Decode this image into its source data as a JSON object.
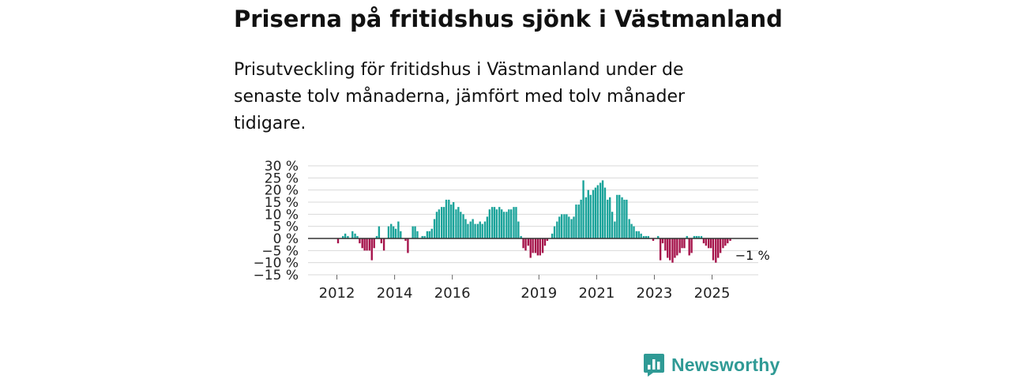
{
  "title": "Priserna på fritidshus sjönk i Västmanland",
  "subtitle": "Prisutveckling för fritidshus i Västmanland under de senaste tolv månaderna, jämfört med tolv månader tidigare.",
  "brand": {
    "name": "Newsworthy",
    "logo_icon": "bar-chart-speech-bubble-icon"
  },
  "colors": {
    "positive": "#1aa39a",
    "negative": "#a5124a",
    "grid": "#d9d9d9",
    "zero_line": "#333333",
    "brand": "#2f9a95"
  },
  "chart_data": {
    "type": "bar",
    "title": "Priserna på fritidshus sjönk i Västmanland",
    "xlabel": "",
    "ylabel": "",
    "ylim": [
      -15,
      30
    ],
    "xlim": [
      2011.0,
      2026.6
    ],
    "yticks": [
      30,
      25,
      20,
      15,
      10,
      5,
      0,
      -5,
      -10,
      -15
    ],
    "ytick_labels": [
      "30 %",
      "25 %",
      "20 %",
      "15 %",
      "10 %",
      "5 %",
      "0 %",
      "−5 %",
      "−10 %",
      "−15 %"
    ],
    "xticks": [
      2012,
      2014,
      2016,
      2019,
      2021,
      2023,
      2025
    ],
    "xtick_labels": [
      "2012",
      "2014",
      "2016",
      "2019",
      "2021",
      "2023",
      "2025"
    ],
    "annotation": {
      "text": "−1 %",
      "x": 2025.8,
      "y": -1
    },
    "grid": true,
    "series": [
      {
        "name": "Prisutveckling",
        "step_months": 1,
        "points": [
          {
            "t": 2011.96,
            "v": 0
          },
          {
            "t": 2012.04,
            "v": -2
          },
          {
            "t": 2012.13,
            "v": 0
          },
          {
            "t": 2012.21,
            "v": 1
          },
          {
            "t": 2012.29,
            "v": 2
          },
          {
            "t": 2012.38,
            "v": 1
          },
          {
            "t": 2012.46,
            "v": 0
          },
          {
            "t": 2012.54,
            "v": 3
          },
          {
            "t": 2012.63,
            "v": 2
          },
          {
            "t": 2012.71,
            "v": 1
          },
          {
            "t": 2012.79,
            "v": -2
          },
          {
            "t": 2012.88,
            "v": -4
          },
          {
            "t": 2012.96,
            "v": -5
          },
          {
            "t": 2013.04,
            "v": -5
          },
          {
            "t": 2013.13,
            "v": -5
          },
          {
            "t": 2013.21,
            "v": -9
          },
          {
            "t": 2013.29,
            "v": -4
          },
          {
            "t": 2013.38,
            "v": 1
          },
          {
            "t": 2013.46,
            "v": 5
          },
          {
            "t": 2013.54,
            "v": -2
          },
          {
            "t": 2013.63,
            "v": -5
          },
          {
            "t": 2013.71,
            "v": 0
          },
          {
            "t": 2013.79,
            "v": 5
          },
          {
            "t": 2013.88,
            "v": 6
          },
          {
            "t": 2013.96,
            "v": 5
          },
          {
            "t": 2014.04,
            "v": 4
          },
          {
            "t": 2014.13,
            "v": 7
          },
          {
            "t": 2014.21,
            "v": 3
          },
          {
            "t": 2014.29,
            "v": 0
          },
          {
            "t": 2014.38,
            "v": -1
          },
          {
            "t": 2014.46,
            "v": -6
          },
          {
            "t": 2014.54,
            "v": 0
          },
          {
            "t": 2014.63,
            "v": 5
          },
          {
            "t": 2014.71,
            "v": 5
          },
          {
            "t": 2014.79,
            "v": 3
          },
          {
            "t": 2014.88,
            "v": 0
          },
          {
            "t": 2014.96,
            "v": 1
          },
          {
            "t": 2015.04,
            "v": 1
          },
          {
            "t": 2015.13,
            "v": 3
          },
          {
            "t": 2015.21,
            "v": 3
          },
          {
            "t": 2015.29,
            "v": 4
          },
          {
            "t": 2015.38,
            "v": 8
          },
          {
            "t": 2015.46,
            "v": 11
          },
          {
            "t": 2015.54,
            "v": 12
          },
          {
            "t": 2015.63,
            "v": 13
          },
          {
            "t": 2015.71,
            "v": 13
          },
          {
            "t": 2015.79,
            "v": 16
          },
          {
            "t": 2015.88,
            "v": 16
          },
          {
            "t": 2015.96,
            "v": 14
          },
          {
            "t": 2016.04,
            "v": 15
          },
          {
            "t": 2016.13,
            "v": 12
          },
          {
            "t": 2016.21,
            "v": 13
          },
          {
            "t": 2016.29,
            "v": 11
          },
          {
            "t": 2016.38,
            "v": 10
          },
          {
            "t": 2016.46,
            "v": 8
          },
          {
            "t": 2016.54,
            "v": 6
          },
          {
            "t": 2016.63,
            "v": 7
          },
          {
            "t": 2016.71,
            "v": 8
          },
          {
            "t": 2016.79,
            "v": 6
          },
          {
            "t": 2016.88,
            "v": 6
          },
          {
            "t": 2016.96,
            "v": 7
          },
          {
            "t": 2017.04,
            "v": 6
          },
          {
            "t": 2017.13,
            "v": 7
          },
          {
            "t": 2017.21,
            "v": 9
          },
          {
            "t": 2017.29,
            "v": 12
          },
          {
            "t": 2017.38,
            "v": 13
          },
          {
            "t": 2017.46,
            "v": 13
          },
          {
            "t": 2017.54,
            "v": 12
          },
          {
            "t": 2017.63,
            "v": 13
          },
          {
            "t": 2017.71,
            "v": 12
          },
          {
            "t": 2017.79,
            "v": 11
          },
          {
            "t": 2017.88,
            "v": 11
          },
          {
            "t": 2017.96,
            "v": 12
          },
          {
            "t": 2018.04,
            "v": 12
          },
          {
            "t": 2018.13,
            "v": 13
          },
          {
            "t": 2018.21,
            "v": 13
          },
          {
            "t": 2018.29,
            "v": 7
          },
          {
            "t": 2018.38,
            "v": 1
          },
          {
            "t": 2018.46,
            "v": -4
          },
          {
            "t": 2018.54,
            "v": -5
          },
          {
            "t": 2018.63,
            "v": -3
          },
          {
            "t": 2018.71,
            "v": -8
          },
          {
            "t": 2018.79,
            "v": -6
          },
          {
            "t": 2018.88,
            "v": -6
          },
          {
            "t": 2018.96,
            "v": -7
          },
          {
            "t": 2019.04,
            "v": -7
          },
          {
            "t": 2019.13,
            "v": -6
          },
          {
            "t": 2019.21,
            "v": -3
          },
          {
            "t": 2019.29,
            "v": -1
          },
          {
            "t": 2019.38,
            "v": 0
          },
          {
            "t": 2019.46,
            "v": 2
          },
          {
            "t": 2019.54,
            "v": 5
          },
          {
            "t": 2019.63,
            "v": 7
          },
          {
            "t": 2019.71,
            "v": 9
          },
          {
            "t": 2019.79,
            "v": 10
          },
          {
            "t": 2019.88,
            "v": 10
          },
          {
            "t": 2019.96,
            "v": 10
          },
          {
            "t": 2020.04,
            "v": 9
          },
          {
            "t": 2020.13,
            "v": 8
          },
          {
            "t": 2020.21,
            "v": 9
          },
          {
            "t": 2020.29,
            "v": 14
          },
          {
            "t": 2020.38,
            "v": 14
          },
          {
            "t": 2020.46,
            "v": 16
          },
          {
            "t": 2020.54,
            "v": 24
          },
          {
            "t": 2020.63,
            "v": 17
          },
          {
            "t": 2020.71,
            "v": 20
          },
          {
            "t": 2020.79,
            "v": 18
          },
          {
            "t": 2020.88,
            "v": 20
          },
          {
            "t": 2020.96,
            "v": 21
          },
          {
            "t": 2021.04,
            "v": 22
          },
          {
            "t": 2021.13,
            "v": 23
          },
          {
            "t": 2021.21,
            "v": 24
          },
          {
            "t": 2021.29,
            "v": 21
          },
          {
            "t": 2021.38,
            "v": 16
          },
          {
            "t": 2021.46,
            "v": 17
          },
          {
            "t": 2021.54,
            "v": 11
          },
          {
            "t": 2021.63,
            "v": 7
          },
          {
            "t": 2021.71,
            "v": 18
          },
          {
            "t": 2021.79,
            "v": 18
          },
          {
            "t": 2021.88,
            "v": 17
          },
          {
            "t": 2021.96,
            "v": 16
          },
          {
            "t": 2022.04,
            "v": 16
          },
          {
            "t": 2022.13,
            "v": 8
          },
          {
            "t": 2022.21,
            "v": 6
          },
          {
            "t": 2022.29,
            "v": 5
          },
          {
            "t": 2022.38,
            "v": 3
          },
          {
            "t": 2022.46,
            "v": 3
          },
          {
            "t": 2022.54,
            "v": 2
          },
          {
            "t": 2022.63,
            "v": 1
          },
          {
            "t": 2022.71,
            "v": 1
          },
          {
            "t": 2022.79,
            "v": 1
          },
          {
            "t": 2022.88,
            "v": 0
          },
          {
            "t": 2022.96,
            "v": -1
          },
          {
            "t": 2023.04,
            "v": 0
          },
          {
            "t": 2023.13,
            "v": 1
          },
          {
            "t": 2023.21,
            "v": -9
          },
          {
            "t": 2023.29,
            "v": -2
          },
          {
            "t": 2023.38,
            "v": -5
          },
          {
            "t": 2023.46,
            "v": -8
          },
          {
            "t": 2023.54,
            "v": -9
          },
          {
            "t": 2023.63,
            "v": -10
          },
          {
            "t": 2023.71,
            "v": -8
          },
          {
            "t": 2023.79,
            "v": -7
          },
          {
            "t": 2023.88,
            "v": -6
          },
          {
            "t": 2023.96,
            "v": -4
          },
          {
            "t": 2024.04,
            "v": -4
          },
          {
            "t": 2024.13,
            "v": 1
          },
          {
            "t": 2024.21,
            "v": -7
          },
          {
            "t": 2024.29,
            "v": -6
          },
          {
            "t": 2024.38,
            "v": 1
          },
          {
            "t": 2024.46,
            "v": 1
          },
          {
            "t": 2024.54,
            "v": 1
          },
          {
            "t": 2024.63,
            "v": 1
          },
          {
            "t": 2024.71,
            "v": -2
          },
          {
            "t": 2024.79,
            "v": -3
          },
          {
            "t": 2024.88,
            "v": -4
          },
          {
            "t": 2024.96,
            "v": -4
          },
          {
            "t": 2025.04,
            "v": -9
          },
          {
            "t": 2025.13,
            "v": -10
          },
          {
            "t": 2025.21,
            "v": -8
          },
          {
            "t": 2025.29,
            "v": -6
          },
          {
            "t": 2025.38,
            "v": -4
          },
          {
            "t": 2025.46,
            "v": -3
          },
          {
            "t": 2025.54,
            "v": -2
          },
          {
            "t": 2025.63,
            "v": -1
          }
        ]
      }
    ]
  }
}
